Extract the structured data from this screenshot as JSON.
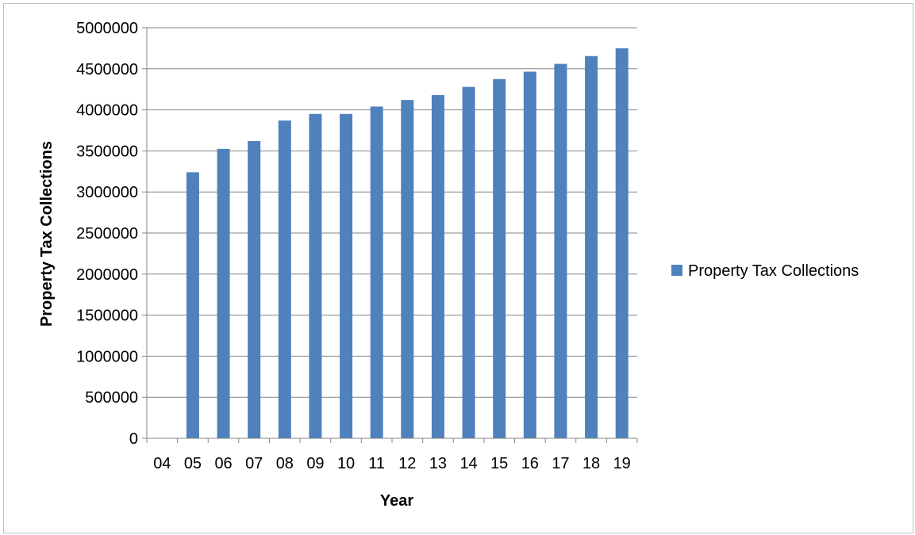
{
  "chart_data": {
    "type": "bar",
    "title": "",
    "xlabel": "Year",
    "ylabel": "Property Tax Collections",
    "categories": [
      "04",
      "05",
      "06",
      "07",
      "08",
      "09",
      "10",
      "11",
      "12",
      "13",
      "14",
      "15",
      "16",
      "17",
      "18",
      "19"
    ],
    "series": [
      {
        "name": "Property Tax Collections",
        "color": "#4f81bd",
        "values": [
          null,
          3240000,
          3525000,
          3620000,
          3870000,
          3950000,
          3950000,
          4040000,
          4120000,
          4180000,
          4280000,
          4375000,
          4465000,
          4560000,
          4655000,
          4750000
        ]
      }
    ],
    "ylim": [
      0,
      5000000
    ],
    "yticks": [
      "0",
      "500000",
      "1000000",
      "1500000",
      "2000000",
      "2500000",
      "3000000",
      "3500000",
      "4000000",
      "4500000",
      "5000000"
    ],
    "grid": true,
    "legend_position": "right"
  }
}
